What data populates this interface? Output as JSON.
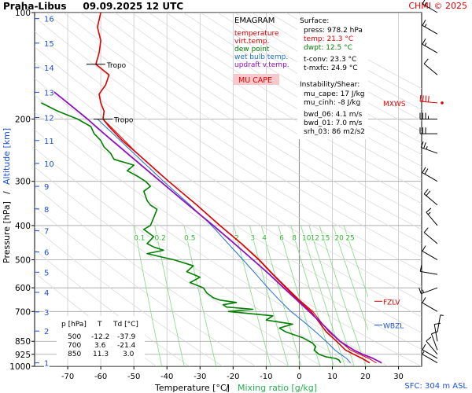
{
  "header": {
    "station": "Praha-Libus",
    "datetime": "09.09.2025 12 UTC",
    "copyright": "CHMI © 2025",
    "surface_elevation": "SFC: 304 m ASL"
  },
  "legend": {
    "title": "EMAGRAM",
    "items": [
      {
        "label": "temperature",
        "color": "#e00000"
      },
      {
        "label": "virt.temp.",
        "color": "#e00000"
      },
      {
        "label": "dew point",
        "color": "#008000"
      },
      {
        "label": "wet bulb temp.",
        "color": "#2070d0"
      },
      {
        "label": "updraft v.temp.",
        "color": "#9010c0"
      }
    ],
    "cape_label": "MU CAPE"
  },
  "surface_box": {
    "title": "Surface:",
    "lines": [
      {
        "text": "press: 978.2 hPa",
        "color": "#000000"
      },
      {
        "text": "temp: 21.3 °C",
        "color": "#e00000"
      },
      {
        "text": "dwpt: 12.5 °C",
        "color": "#008000"
      }
    ],
    "conv_lines": [
      "t-conv: 23.3 °C",
      "t-mxfc: 24.9 °C"
    ],
    "instab_title": "Instability/Shear:",
    "instab_lines": [
      "mu_cape: 17 J/kg",
      "mu_cinh: -8 J/kg",
      "bwd_06: 4.1 m/s",
      "bwd_01: 7.0 m/s",
      "srh_03: 86 m2/s2"
    ]
  },
  "level_table": {
    "header": [
      "p [hPa]",
      "T",
      "Td [°C]"
    ],
    "rows": [
      [
        "500",
        "-12.2",
        "-37.9"
      ],
      [
        "700",
        "3.6",
        "-21.4"
      ],
      [
        "850",
        "11.3",
        "3.0"
      ]
    ]
  },
  "markers": {
    "tropo_label": "Tropo",
    "mxws_label": "MXWS",
    "fzlv_label": "FZLV",
    "wbzl_label": "WBZL"
  },
  "chart_data": {
    "type": "line",
    "title": "Praha-Libus 09.09.2025 12 UTC",
    "xlabel": "Temperature [°C]",
    "xlabel_extra": "Mixing ratio [g/kg]",
    "ylabel": "Pressure [hPa]",
    "ylabel_extra": "Altitude [km]",
    "xlim": [
      -80,
      37
    ],
    "ylim": [
      1000,
      100
    ],
    "y_scale": "log",
    "x_ticks": [
      -70,
      -60,
      -50,
      -40,
      -30,
      -20,
      -10,
      0,
      10,
      20,
      30
    ],
    "p_ticks": [
      100,
      200,
      300,
      400,
      500,
      600,
      700,
      850,
      925,
      1000
    ],
    "altitude_km_labels": [
      {
        "p": 978,
        "km": "1"
      },
      {
        "p": 795,
        "km": "2"
      },
      {
        "p": 702,
        "km": "3"
      },
      {
        "p": 618,
        "km": "4"
      },
      {
        "p": 542,
        "km": "5"
      },
      {
        "p": 475,
        "km": "6"
      },
      {
        "p": 414,
        "km": "7"
      },
      {
        "p": 359,
        "km": "8"
      },
      {
        "p": 310,
        "km": "9"
      },
      {
        "p": 267,
        "km": "10"
      },
      {
        "p": 230,
        "km": "11"
      },
      {
        "p": 198,
        "km": "12"
      },
      {
        "p": 168,
        "km": "13"
      },
      {
        "p": 143,
        "km": "14"
      },
      {
        "p": 122,
        "km": "15"
      },
      {
        "p": 104,
        "km": "16"
      }
    ],
    "mixing_ratio_labels": [
      "0.1",
      "0.2",
      "0.5",
      "2",
      "3",
      "4",
      "6",
      "8",
      "10",
      "12",
      "15",
      "20",
      "25"
    ],
    "mixing_ratio_values": [
      0.1,
      0.2,
      0.5,
      2,
      3,
      4,
      6,
      8,
      10,
      12,
      15,
      20,
      25
    ],
    "mixing_ratio_label_pressure": 440,
    "tropopause_pressures": [
      140,
      200
    ],
    "series": [
      {
        "name": "temperature",
        "color": "#e00000",
        "width": 1.6,
        "points": [
          [
            978,
            21.3
          ],
          [
            950,
            19
          ],
          [
            925,
            16.5
          ],
          [
            900,
            14
          ],
          [
            850,
            11.3
          ],
          [
            800,
            8.2
          ],
          [
            750,
            6
          ],
          [
            700,
            3.6
          ],
          [
            650,
            -0.3
          ],
          [
            600,
            -4
          ],
          [
            550,
            -8
          ],
          [
            500,
            -12.2
          ],
          [
            450,
            -17.5
          ],
          [
            400,
            -24
          ],
          [
            350,
            -31
          ],
          [
            300,
            -39.5
          ],
          [
            270,
            -45
          ],
          [
            250,
            -49
          ],
          [
            230,
            -53.5
          ],
          [
            210,
            -57.5
          ],
          [
            200,
            -59.3
          ],
          [
            190,
            -59
          ],
          [
            180,
            -60
          ],
          [
            170,
            -60.5
          ],
          [
            160,
            -58.5
          ],
          [
            150,
            -57.5
          ],
          [
            140,
            -61.5
          ],
          [
            130,
            -60.5
          ],
          [
            120,
            -60
          ],
          [
            110,
            -61
          ],
          [
            100,
            -60
          ]
        ]
      },
      {
        "name": "virt.temp.",
        "color": "#e00000",
        "width": 1,
        "points": [
          [
            978,
            23.3
          ],
          [
            950,
            21
          ],
          [
            925,
            18.3
          ],
          [
            900,
            15.5
          ],
          [
            850,
            12.3
          ],
          [
            800,
            9
          ],
          [
            750,
            6.6
          ],
          [
            700,
            4.1
          ],
          [
            650,
            0.1
          ],
          [
            600,
            -3.7
          ],
          [
            550,
            -7.8
          ],
          [
            500,
            -12
          ],
          [
            450,
            -17.4
          ],
          [
            400,
            -23.9
          ],
          [
            350,
            -30.9
          ],
          [
            300,
            -39.5
          ],
          [
            250,
            -49
          ],
          [
            200,
            -59.3
          ]
        ]
      },
      {
        "name": "dew point",
        "color": "#008000",
        "width": 1.6,
        "points": [
          [
            978,
            12.5
          ],
          [
            960,
            12
          ],
          [
            950,
            11
          ],
          [
            940,
            8
          ],
          [
            925,
            6
          ],
          [
            900,
            4.5
          ],
          [
            880,
            5
          ],
          [
            860,
            4
          ],
          [
            850,
            3
          ],
          [
            830,
            1
          ],
          [
            800,
            -4
          ],
          [
            780,
            -6
          ],
          [
            760,
            -2
          ],
          [
            740,
            -10
          ],
          [
            720,
            -8
          ],
          [
            700,
            -21.4
          ],
          [
            690,
            -14
          ],
          [
            680,
            -22
          ],
          [
            670,
            -23
          ],
          [
            660,
            -19
          ],
          [
            650,
            -24
          ],
          [
            640,
            -26
          ],
          [
            620,
            -28
          ],
          [
            600,
            -29
          ],
          [
            580,
            -33
          ],
          [
            560,
            -30
          ],
          [
            540,
            -34
          ],
          [
            520,
            -32
          ],
          [
            500,
            -37.9
          ],
          [
            490,
            -42
          ],
          [
            480,
            -46
          ],
          [
            470,
            -41
          ],
          [
            460,
            -44
          ],
          [
            450,
            -46
          ],
          [
            430,
            -44
          ],
          [
            410,
            -47
          ],
          [
            400,
            -45
          ],
          [
            380,
            -44
          ],
          [
            360,
            -43
          ],
          [
            350,
            -45
          ],
          [
            340,
            -46
          ],
          [
            320,
            -47
          ],
          [
            310,
            -45
          ],
          [
            300,
            -46.5
          ],
          [
            290,
            -49
          ],
          [
            280,
            -52
          ],
          [
            270,
            -50
          ],
          [
            260,
            -56
          ],
          [
            250,
            -57
          ],
          [
            240,
            -59
          ],
          [
            230,
            -60
          ],
          [
            220,
            -62
          ],
          [
            210,
            -63
          ],
          [
            200,
            -67
          ],
          [
            190,
            -73
          ],
          [
            180,
            -78
          ]
        ]
      },
      {
        "name": "wet bulb temp.",
        "color": "#2070d0",
        "width": 1,
        "points": [
          [
            978,
            15.5
          ],
          [
            950,
            14.3
          ],
          [
            925,
            12.5
          ],
          [
            900,
            10.8
          ],
          [
            850,
            8.1
          ],
          [
            800,
            5
          ],
          [
            750,
            1.5
          ],
          [
            700,
            -2.5
          ],
          [
            650,
            -6
          ],
          [
            600,
            -9.5
          ],
          [
            550,
            -13
          ],
          [
            500,
            -17
          ],
          [
            450,
            -21.5
          ],
          [
            400,
            -26.5
          ],
          [
            350,
            -33
          ],
          [
            300,
            -41
          ],
          [
            250,
            -50
          ],
          [
            200,
            -61
          ]
        ]
      },
      {
        "name": "updraft v.temp.",
        "color": "#9010c0",
        "width": 1.8,
        "points": [
          [
            978,
            24.9
          ],
          [
            950,
            22.3
          ],
          [
            925,
            19.2
          ],
          [
            900,
            16.5
          ],
          [
            850,
            12.3
          ],
          [
            800,
            9.4
          ],
          [
            750,
            6.4
          ],
          [
            700,
            3
          ],
          [
            650,
            -0.7
          ],
          [
            600,
            -4.7
          ],
          [
            550,
            -9
          ],
          [
            500,
            -14
          ],
          [
            450,
            -19.6
          ],
          [
            400,
            -26
          ],
          [
            350,
            -33.5
          ],
          [
            300,
            -42
          ],
          [
            250,
            -52
          ],
          [
            220,
            -59
          ],
          [
            200,
            -64
          ],
          [
            180,
            -70
          ],
          [
            165,
            -75
          ]
        ]
      }
    ],
    "wind_profile": [
      {
        "p": 978,
        "dir": 300,
        "spd": 5
      },
      {
        "p": 950,
        "dir": 300,
        "spd": 10
      },
      {
        "p": 925,
        "dir": 320,
        "spd": 10
      },
      {
        "p": 900,
        "dir": 340,
        "spd": 10
      },
      {
        "p": 850,
        "dir": 350,
        "spd": 10
      },
      {
        "p": 800,
        "dir": 10,
        "spd": 5
      },
      {
        "p": 700,
        "dir": 300,
        "spd": 10
      },
      {
        "p": 600,
        "dir": 250,
        "spd": 15
      },
      {
        "p": 550,
        "dir": 280,
        "spd": 10
      },
      {
        "p": 500,
        "dir": 300,
        "spd": 10
      },
      {
        "p": 450,
        "dir": 310,
        "spd": 10
      },
      {
        "p": 400,
        "dir": 320,
        "spd": 15
      },
      {
        "p": 350,
        "dir": 310,
        "spd": 20
      },
      {
        "p": 300,
        "dir": 300,
        "spd": 20
      },
      {
        "p": 250,
        "dir": 290,
        "spd": 25
      },
      {
        "p": 220,
        "dir": 270,
        "spd": 30
      },
      {
        "p": 200,
        "dir": 270,
        "spd": 35
      },
      {
        "p": 180,
        "dir": 275,
        "spd": 40
      },
      {
        "p": 150,
        "dir": 310,
        "spd": 10
      },
      {
        "p": 130,
        "dir": 300,
        "spd": 15
      },
      {
        "p": 115,
        "dir": 300,
        "spd": 15
      },
      {
        "p": 100,
        "dir": 300,
        "spd": 15
      }
    ],
    "mxws_pressure": 180,
    "fzlv_pressure": 655,
    "wbzl_pressure": 765
  }
}
